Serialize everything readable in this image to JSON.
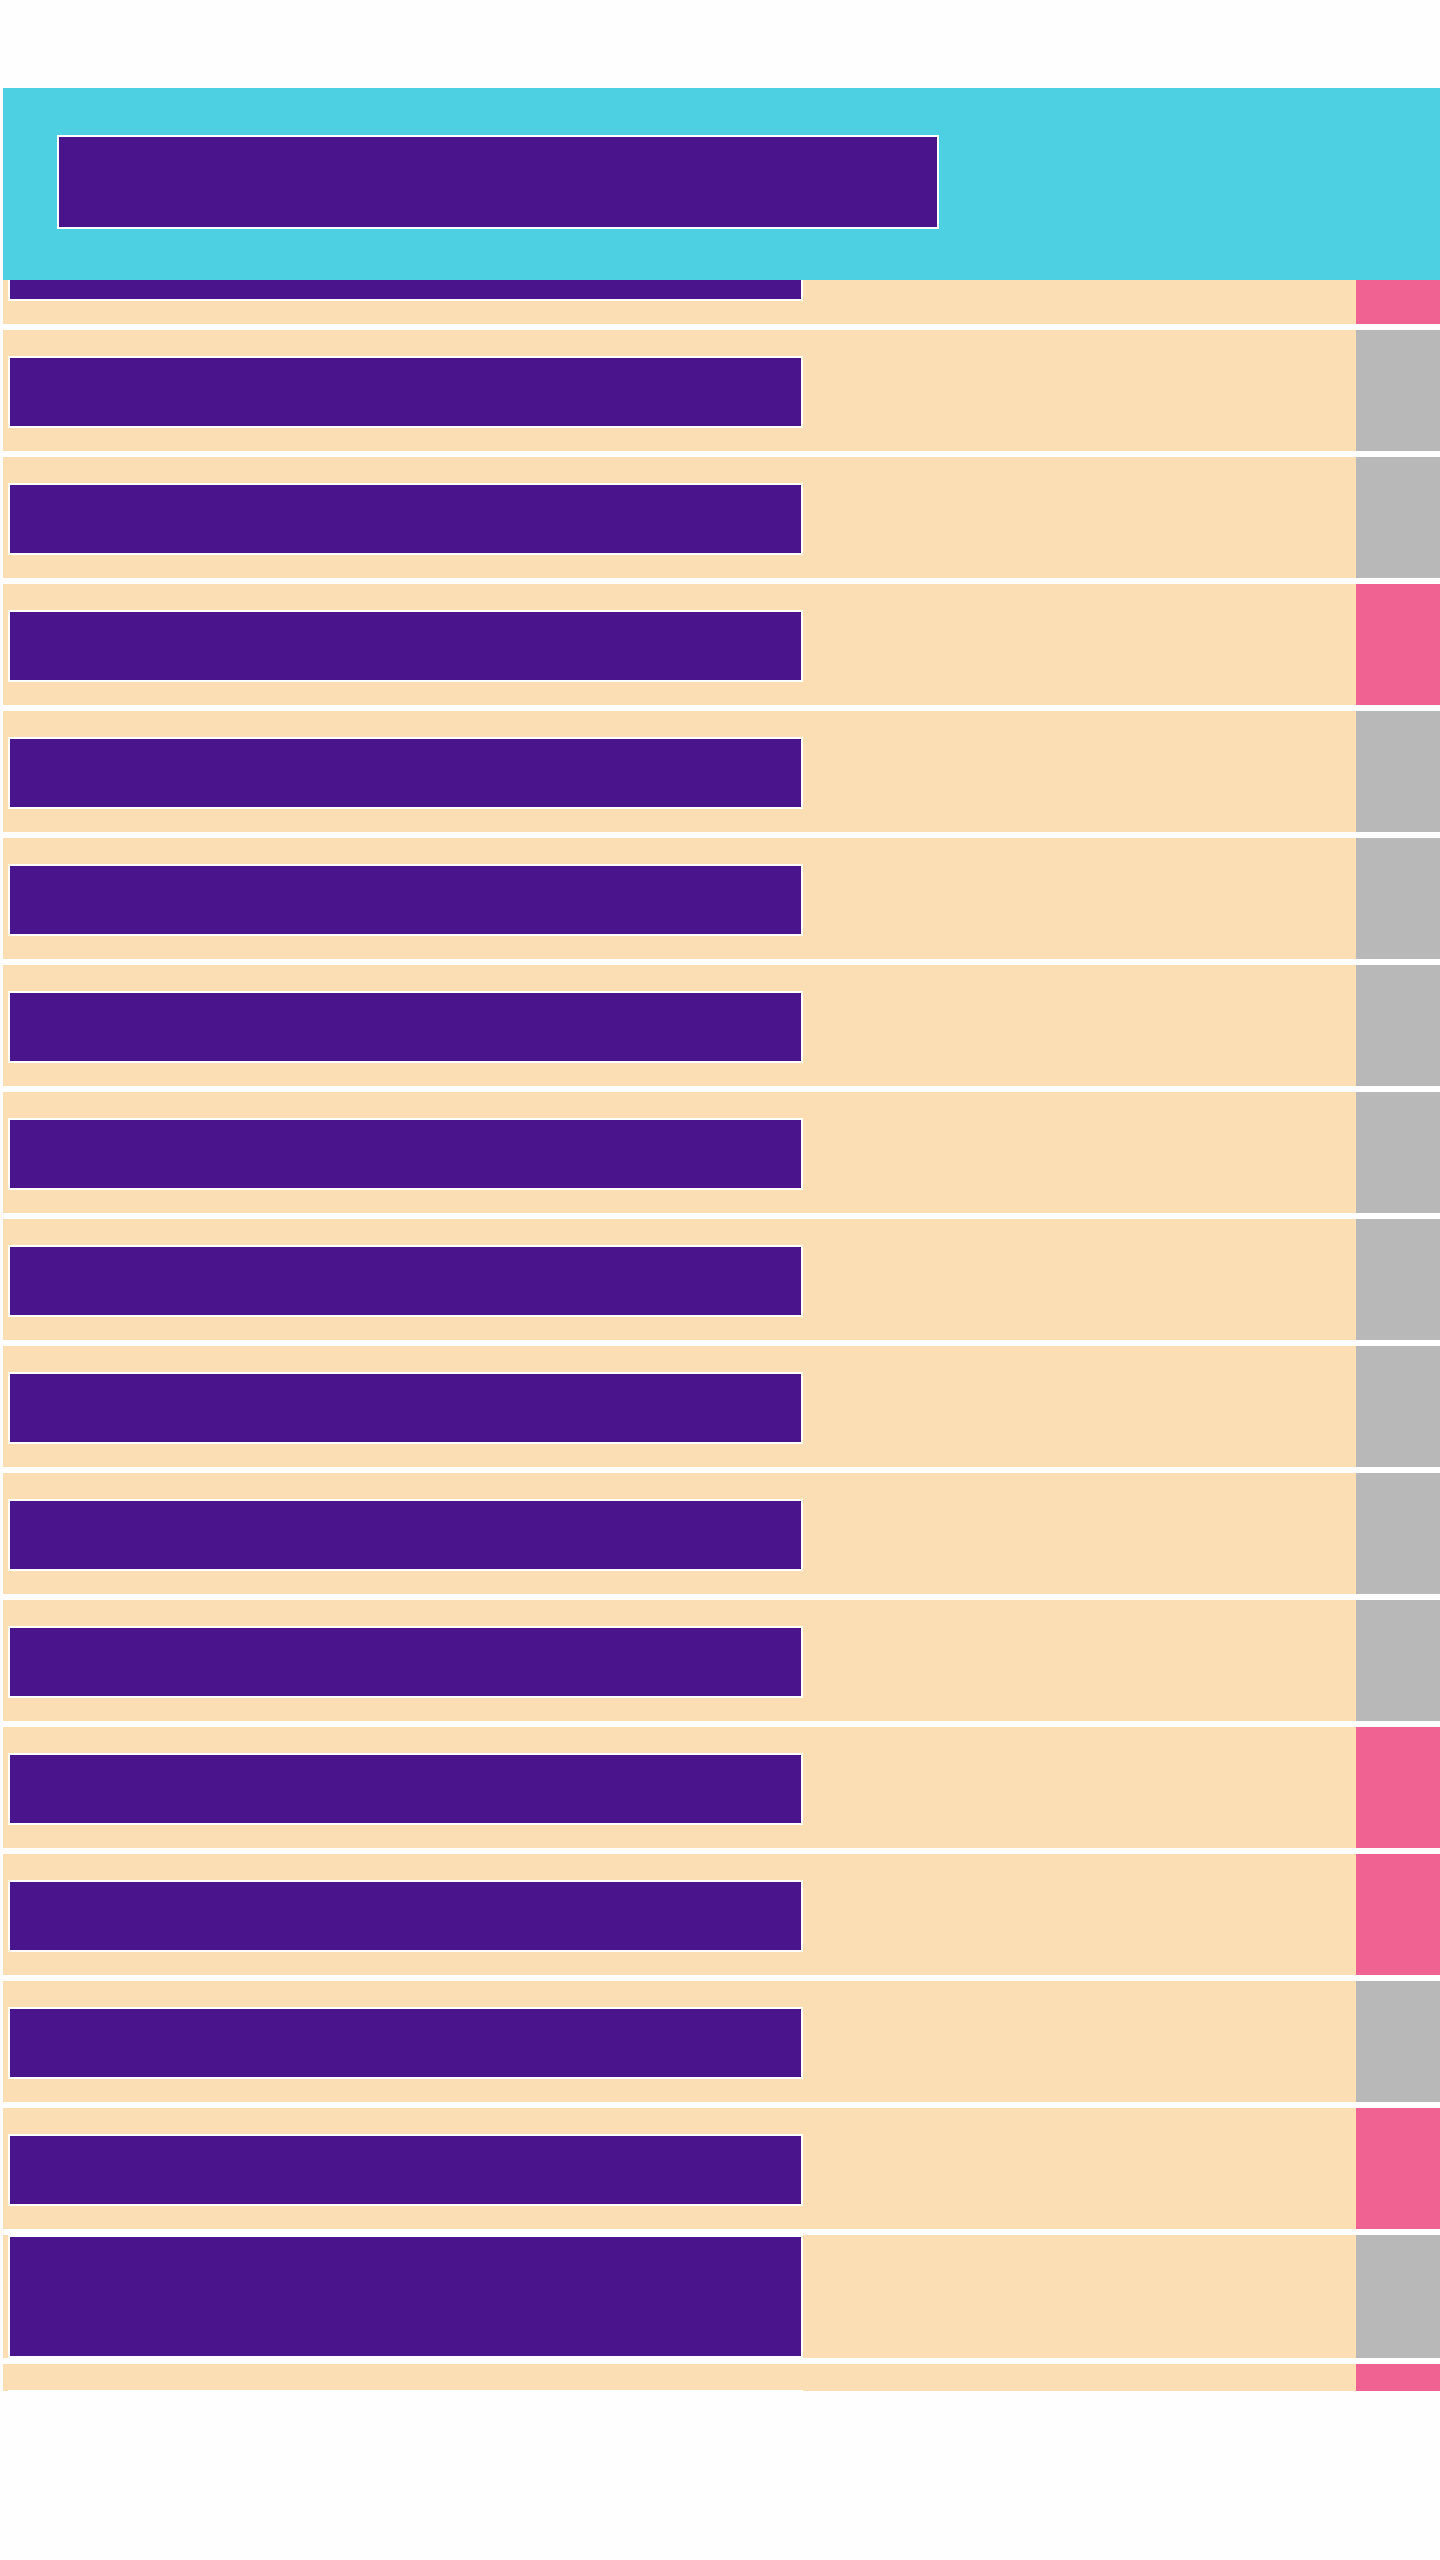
{
  "header": {
    "title": ""
  },
  "colors": {
    "header_bg": "#4dd0e1",
    "label_bg": "#4a148c",
    "row_bg": "#fcdeb4",
    "status_on": "#f06292",
    "status_off": "#b8b8b8"
  },
  "rows": [
    {
      "label": "",
      "active": true
    },
    {
      "label": "",
      "active": false
    },
    {
      "label": "",
      "active": false
    },
    {
      "label": "",
      "active": true
    },
    {
      "label": "",
      "active": false
    },
    {
      "label": "",
      "active": false
    },
    {
      "label": "",
      "active": false
    },
    {
      "label": "",
      "active": false
    },
    {
      "label": "",
      "active": false
    },
    {
      "label": "",
      "active": false
    },
    {
      "label": "",
      "active": false
    },
    {
      "label": "",
      "active": false
    },
    {
      "label": "",
      "active": true
    },
    {
      "label": "",
      "active": true
    },
    {
      "label": "",
      "active": false
    },
    {
      "label": "",
      "active": true
    },
    {
      "label": "",
      "active": false,
      "tall": true
    },
    {
      "label": "",
      "active": true
    }
  ]
}
